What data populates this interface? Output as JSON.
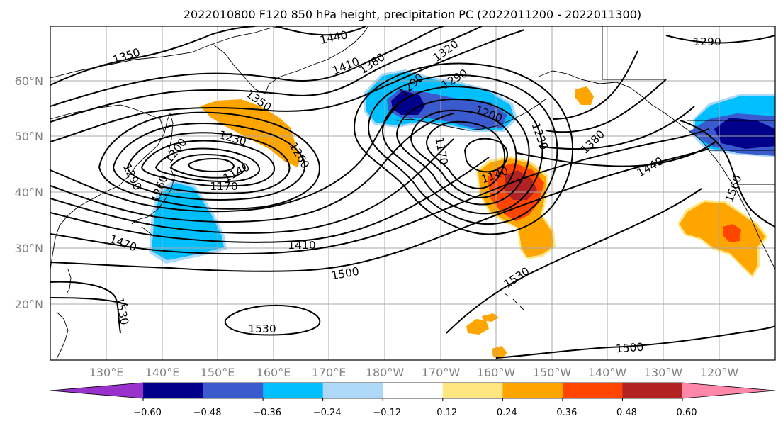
{
  "title": "2022010800 F120 850 hPa height, precipitation PC (2022011200 - 2022011300)",
  "lat_labels": [
    "60°N",
    "50°N",
    "40°N",
    "30°N",
    "20°N"
  ],
  "lon_labels": [
    "130°E",
    "140°E",
    "150°E",
    "160°E",
    "170°E",
    "180°W",
    "170°W",
    "160°W",
    "150°W",
    "140°W",
    "130°W",
    "120°W"
  ],
  "contour_labels": {
    "c1350a": "1350",
    "c1440a": "1440",
    "c1410a": "1410",
    "c1380a": "1380",
    "c1320a": "1320",
    "c1290a": "1290",
    "c1290b": "1290",
    "c1350b": "1350",
    "c1230a": "1230",
    "c1260a": "1260",
    "c1200a": "1200",
    "c1290c": "1290",
    "c1170a": "1170",
    "c1140a": "1140",
    "c1260b": "1260",
    "c1290d": "1290",
    "c1200b": "1200",
    "c1170b": "1170",
    "c1230b": "1230",
    "c1140b": "1140",
    "c1380b": "1380",
    "c1440b": "1440",
    "c1560": "1560",
    "c1470": "1470",
    "c1410b": "1410",
    "c1500a": "1500",
    "c1530a": "1530",
    "c1530b": "1530",
    "c1530c": "1530",
    "c1500b": "1500"
  },
  "colorbar": {
    "ticks": [
      "−0.60",
      "−0.48",
      "−0.36",
      "−0.24",
      "−0.12",
      "0.12",
      "0.24",
      "0.36",
      "0.48",
      "0.60"
    ],
    "colors": [
      "#9932cc",
      "#00008b",
      "#3a5bcd",
      "#00bfff",
      "#add8f8",
      "#ffffff",
      "#ffe680",
      "#ffa500",
      "#ff4500",
      "#b22222",
      "#ff88aa"
    ]
  },
  "legend_colors": {
    "neg_light": "#add8f8",
    "neg_mid": "#00bfff",
    "neg_strong": "#3a5bcd",
    "neg_max": "#00008b",
    "pos_light": "#ffe680",
    "pos_mid": "#ffa500",
    "pos_strong": "#ff4500",
    "pos_max": "#b22222"
  }
}
